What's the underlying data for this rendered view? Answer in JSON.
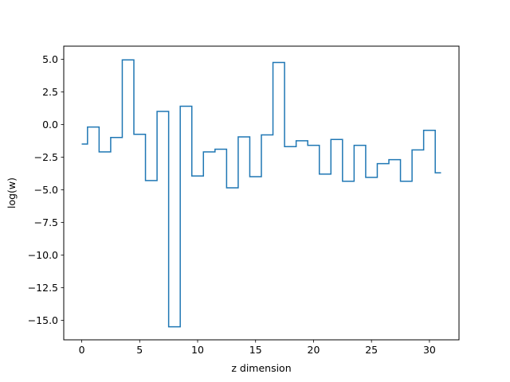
{
  "chart_data": {
    "type": "line",
    "drawstyle": "steps-mid",
    "title": "",
    "xlabel": "z dimension",
    "ylabel": "log(w)",
    "xlim": [
      -1.55,
      32.55
    ],
    "ylim": [
      -16.5,
      6.0
    ],
    "xticks": [
      0,
      5,
      10,
      15,
      20,
      25,
      30
    ],
    "xtick_labels": [
      "0",
      "5",
      "10",
      "15",
      "20",
      "25",
      "30"
    ],
    "yticks": [
      5.0,
      2.5,
      0.0,
      -2.5,
      -5.0,
      -7.5,
      -10.0,
      -12.5,
      -15.0
    ],
    "ytick_labels": [
      "5.0",
      "2.5",
      "0.0",
      "−2.5",
      "−5.0",
      "−7.5",
      "−10.0",
      "−12.5",
      "−15.0"
    ],
    "grid": false,
    "legend": "none",
    "series": [
      {
        "color": "#1f77b4",
        "x": [
          0,
          1,
          2,
          3,
          4,
          5,
          6,
          7,
          8,
          9,
          10,
          11,
          12,
          13,
          14,
          15,
          16,
          17,
          18,
          19,
          20,
          21,
          22,
          23,
          24,
          25,
          26,
          27,
          28,
          29,
          30,
          31
        ],
        "y": [
          -1.5,
          -0.2,
          -2.1,
          -1.0,
          4.95,
          -0.75,
          -4.3,
          1.0,
          -15.5,
          1.4,
          -3.95,
          -2.1,
          -1.9,
          -4.85,
          -0.95,
          -4.0,
          -0.8,
          4.75,
          -1.7,
          -1.25,
          -1.6,
          -3.8,
          -1.15,
          -4.35,
          -1.6,
          -4.05,
          -3.0,
          -2.7,
          -4.35,
          -1.95,
          -0.45,
          -3.7
        ]
      }
    ]
  }
}
